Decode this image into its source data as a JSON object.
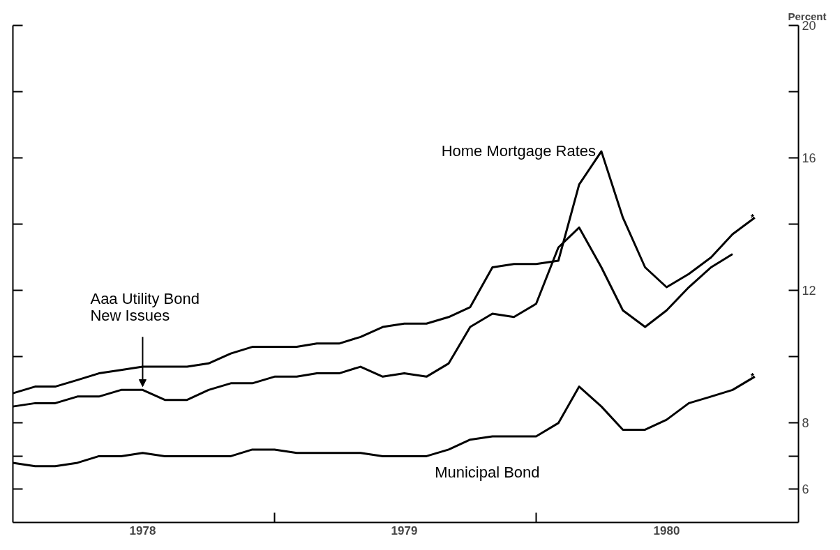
{
  "chart_data": {
    "type": "line",
    "ylabel": "Percent",
    "x": [
      "1978-01",
      "1978-02",
      "1978-03",
      "1978-04",
      "1978-05",
      "1978-06",
      "1978-07",
      "1978-08",
      "1978-09",
      "1978-10",
      "1978-11",
      "1978-12",
      "1979-01",
      "1979-02",
      "1979-03",
      "1979-04",
      "1979-05",
      "1979-06",
      "1979-07",
      "1979-08",
      "1979-09",
      "1979-10",
      "1979-11",
      "1979-12",
      "1980-01",
      "1980-02",
      "1980-03",
      "1980-04",
      "1980-05",
      "1980-06",
      "1980-07",
      "1980-08",
      "1980-09",
      "1980-10",
      "1980-11"
    ],
    "series": [
      {
        "color": "#000000",
        "values": [
          8.9,
          9.1,
          9.1,
          9.3,
          9.5,
          9.6,
          9.7,
          9.7,
          9.7,
          9.8,
          10.1,
          10.3,
          10.3,
          10.3,
          10.4,
          10.4,
          10.6,
          10.9,
          11.0,
          11.0,
          11.2,
          11.5,
          12.7,
          12.8,
          12.8,
          12.9,
          15.2,
          16.2,
          14.2,
          12.7,
          12.1,
          12.5,
          13.0,
          13.7,
          14.2
        ]
      },
      {
        "color": "#000000",
        "values": [
          8.5,
          8.6,
          8.6,
          8.8,
          8.8,
          9.0,
          9.0,
          8.7,
          8.7,
          9.0,
          9.2,
          9.2,
          9.4,
          9.4,
          9.5,
          9.5,
          9.7,
          9.4,
          9.5,
          9.4,
          9.8,
          10.9,
          11.3,
          11.2,
          11.6,
          13.3,
          13.9,
          12.7,
          11.4,
          10.9,
          11.4,
          12.1,
          12.7,
          13.1,
          null
        ]
      },
      {
        "color": "#000000",
        "values": [
          6.8,
          6.7,
          6.7,
          6.8,
          7.0,
          7.0,
          7.1,
          7.0,
          7.0,
          7.0,
          7.0,
          7.2,
          7.2,
          7.1,
          7.1,
          7.1,
          7.1,
          7.0,
          7.0,
          7.0,
          7.2,
          7.5,
          7.6,
          7.6,
          7.6,
          8.0,
          9.1,
          8.5,
          7.8,
          7.8,
          8.1,
          8.6,
          8.8,
          9.0,
          9.4
        ]
      }
    ],
    "xlim": [
      "1978-01-01",
      "1981-01-01"
    ],
    "xticks": [
      {
        "value": "1978-07-01",
        "label": "1978"
      },
      {
        "value": "1979-01-01",
        "label": null
      },
      {
        "value": "1979-07-01",
        "label": "1979"
      },
      {
        "value": "1980-01-01",
        "label": null
      },
      {
        "value": "1980-07-01",
        "label": "1980"
      }
    ],
    "ylim": [
      5,
      20
    ],
    "yticks": [
      6,
      {
        "value": 7,
        "label": null
      },
      8,
      {
        "value": 10,
        "label": null
      },
      12,
      {
        "value": 14,
        "label": null
      },
      16,
      {
        "value": 18,
        "label": null
      },
      20
    ],
    "annotations": [
      "Home Mortgage Rates",
      {
        "text": "Aaa Utility Bond\nNew Issues",
        "x": "1978-07",
        "y": 9.0
      },
      {
        "text": "Municipal Bond",
        "x": "1979-09",
        "y": 7.2
      },
      {
        "text": "*",
        "x": "1980-11",
        "y": 14.2
      },
      {
        "text": "*",
        "x": "1980-11",
        "y": 9.4
      }
    ],
    "grid": false,
    "marker": "none",
    "line_style": "solid"
  }
}
